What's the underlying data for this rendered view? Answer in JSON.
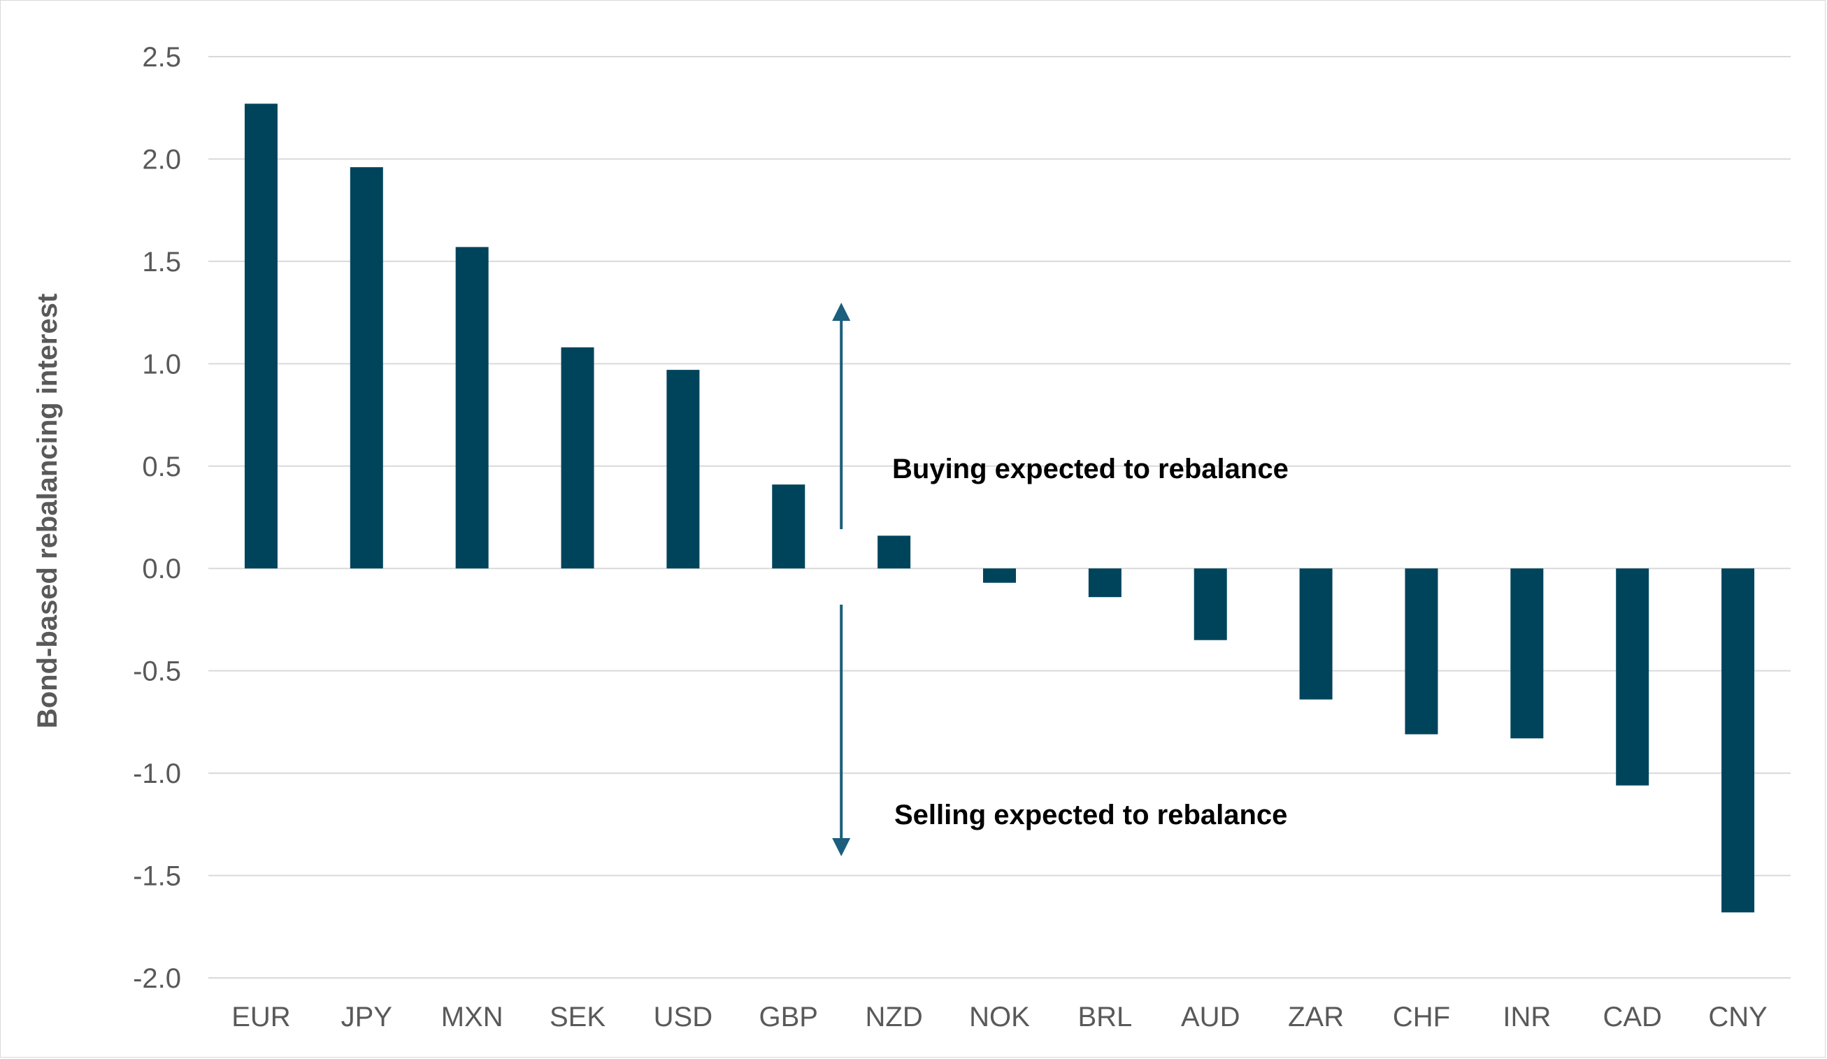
{
  "chart_data": {
    "type": "bar",
    "title": "",
    "xlabel": "",
    "ylabel": "Bond-based rebalancing interest",
    "ylim": [
      -2.0,
      2.5
    ],
    "yticks": [
      "2.5",
      "2.0",
      "1.5",
      "1.0",
      "0.5",
      "0.0",
      "-0.5",
      "-1.0",
      "-1.5",
      "-2.0"
    ],
    "ytick_values": [
      2.5,
      2.0,
      1.5,
      1.0,
      0.5,
      0.0,
      -0.5,
      -1.0,
      -1.5,
      -2.0
    ],
    "grid": true,
    "categories": [
      "EUR",
      "JPY",
      "MXN",
      "SEK",
      "USD",
      "GBP",
      "NZD",
      "NOK",
      "BRL",
      "AUD",
      "ZAR",
      "CHF",
      "INR",
      "CAD",
      "CNY"
    ],
    "values": [
      2.27,
      1.96,
      1.57,
      1.08,
      0.97,
      0.41,
      0.16,
      -0.07,
      -0.14,
      -0.35,
      -0.64,
      -0.81,
      -0.83,
      -1.06,
      -1.68
    ],
    "annotations": {
      "buying": "Buying expected to rebalance",
      "selling": "Selling expected to rebalance"
    }
  },
  "colors": {
    "bar": "#00445c",
    "arrow": "#1b5e7d",
    "grid": "#d9d9d9",
    "tick_text": "#595959",
    "annotation_text": "#000000"
  }
}
